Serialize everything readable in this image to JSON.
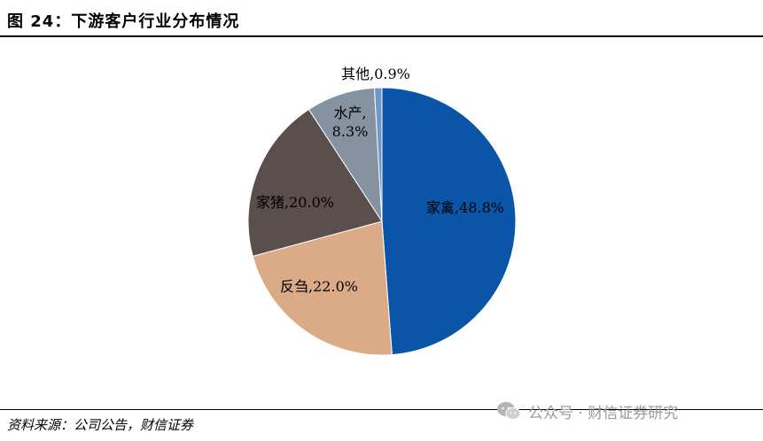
{
  "header": {
    "title": "图 24：下游客户行业分布情况"
  },
  "footer": {
    "source": "资料来源：公司公告，财信证券"
  },
  "watermark": {
    "text": "公众号 · 财信证券研究",
    "icon": "wechat-icon"
  },
  "chart_data": {
    "type": "pie",
    "title": "",
    "start_angle_deg": 0,
    "direction": "clockwise",
    "slices": [
      {
        "label": "家禽",
        "value": 48.8,
        "display": "家禽,48.8%",
        "color": "#0A55A8"
      },
      {
        "label": "反刍",
        "value": 22.0,
        "display": "反刍,22.0%",
        "color": "#DBAA86"
      },
      {
        "label": "家猪",
        "value": 20.0,
        "display": "家猪,20.0%",
        "color": "#5A4F4D"
      },
      {
        "label": "水产",
        "value": 8.3,
        "display_lines": [
          "水产,",
          "8.3%"
        ],
        "color": "#8592A0"
      },
      {
        "label": "其他",
        "value": 0.9,
        "display": "其他,0.9%",
        "color": "#6E98C8"
      }
    ]
  }
}
